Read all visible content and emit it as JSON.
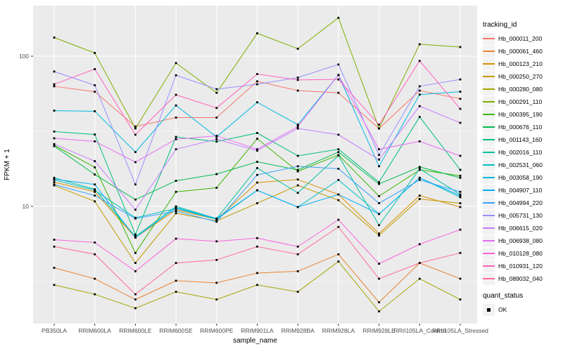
{
  "chart_data": {
    "type": "line",
    "title": "",
    "xlabel": "sample_name",
    "ylabel": "FPKM + 1",
    "y_scale": "log10",
    "y_ticks": [
      10,
      100
    ],
    "y_minor_gridlines": [
      3.1623,
      31.623
    ],
    "ylim": [
      1.7,
      220
    ],
    "grid": true,
    "panel_color": "#ebebeb",
    "gridline_color": "#ffffff",
    "tick_label_color": "#4d4d4d",
    "point_shape": "square",
    "point_color": "#000000",
    "legend_position": "right",
    "categories": [
      "PB350LA",
      "RRIM600LA",
      "RRIM600LE",
      "RRIM600SE",
      "RRIM600PE",
      "RRIM901LA",
      "RRIM928BA",
      "RRIM928LA",
      "RRIM928LE",
      "RRII105LA_Control",
      "RRII105LA_Stressed"
    ],
    "series": [
      {
        "name": "Hb_000011_200",
        "color": "#F8766D",
        "values": [
          63,
          58,
          34,
          39,
          39,
          68,
          59,
          57,
          33,
          59,
          52
        ]
      },
      {
        "name": "Hb_000061_460",
        "color": "#EA8331",
        "values": [
          3.9,
          3.3,
          2.4,
          3.2,
          3.1,
          3.6,
          3.7,
          4.8,
          2.3,
          4.2,
          3.3
        ]
      },
      {
        "name": "Hb_000123_210",
        "color": "#D89000",
        "values": [
          14.5,
          12.5,
          6.2,
          9.5,
          8.2,
          14.4,
          15.1,
          12,
          6.6,
          11.8,
          9.9
        ]
      },
      {
        "name": "Hb_000250_270",
        "color": "#C09B00",
        "values": [
          13.8,
          10.8,
          4.2,
          9,
          8,
          10.5,
          13.8,
          11,
          6.4,
          11.2,
          10.5
        ]
      },
      {
        "name": "Hb_000280_080",
        "color": "#A3A500",
        "values": [
          3,
          2.6,
          2.1,
          2.7,
          2.4,
          3,
          2.7,
          4.3,
          2,
          3.3,
          2.4
        ]
      },
      {
        "name": "Hb_000291_110",
        "color": "#7CAE00",
        "values": [
          133,
          105,
          33,
          90,
          57,
          142,
          112,
          180,
          33,
          120,
          115
        ]
      },
      {
        "name": "Hb_000395_190",
        "color": "#39B600",
        "values": [
          25.5,
          18.2,
          4.9,
          12.5,
          13.3,
          28.2,
          17.1,
          22,
          11.7,
          17.5,
          16
        ]
      },
      {
        "name": "Hb_000676_110",
        "color": "#00BB4E",
        "values": [
          25.2,
          16.3,
          11.1,
          14.8,
          16.4,
          19.8,
          17.5,
          23,
          14.1,
          18.3,
          15.5
        ]
      },
      {
        "name": "Hb_001143_160",
        "color": "#00BF7D",
        "values": [
          31.5,
          30.1,
          6.5,
          29,
          27,
          30.8,
          21.7,
          24,
          14.5,
          39.4,
          17.5
        ]
      },
      {
        "name": "Hb_002016_110",
        "color": "#00C1A3",
        "values": [
          15.5,
          13,
          6.3,
          10,
          8.3,
          18,
          12.3,
          21.8,
          7.5,
          17.8,
          12
        ]
      },
      {
        "name": "Hb_002531_060",
        "color": "#00BFC4",
        "values": [
          15,
          12.8,
          8.4,
          9.7,
          8.2,
          12.8,
          9.9,
          15,
          8.9,
          15.5,
          11.5
        ]
      },
      {
        "name": "Hb_003058_190",
        "color": "#00BAE0",
        "values": [
          43.4,
          43,
          23,
          47,
          29,
          49.3,
          35,
          75,
          18.5,
          55.5,
          58
        ]
      },
      {
        "name": "Hb_004907_110",
        "color": "#00B0F6",
        "values": [
          15.2,
          14,
          6.2,
          9.8,
          8.3,
          12.8,
          9.9,
          12,
          8.9,
          15.5,
          11.8
        ]
      },
      {
        "name": "Hb_004994_220",
        "color": "#35A2FF",
        "values": [
          14,
          11.8,
          8.3,
          9.3,
          7.9,
          16.2,
          18.5,
          17.8,
          10.5,
          15,
          12.5
        ]
      },
      {
        "name": "Hb_005731_130",
        "color": "#9590FF",
        "values": [
          79,
          64,
          14,
          74.6,
          60.3,
          65,
          72,
          88,
          22,
          63,
          70
        ]
      },
      {
        "name": "Hb_006615_020",
        "color": "#C77CFF",
        "values": [
          26,
          20,
          9.5,
          24,
          28,
          23.5,
          33,
          30,
          20.5,
          46.5,
          36
        ]
      },
      {
        "name": "Hb_006938_080",
        "color": "#E76BF3",
        "values": [
          28.4,
          27.1,
          19.7,
          28,
          29.5,
          24,
          34,
          74.9,
          24,
          27.1,
          21.7
        ]
      },
      {
        "name": "Hb_010128_080",
        "color": "#FA62DB",
        "values": [
          6,
          5.75,
          3.7,
          6.1,
          5.85,
          6.15,
          5.4,
          8.15,
          4.15,
          5.6,
          7
        ]
      },
      {
        "name": "Hb_010931_120",
        "color": "#FF62BC",
        "values": [
          65,
          82,
          30,
          55.3,
          45.2,
          76,
          69.5,
          70,
          35,
          93,
          44.6
        ]
      },
      {
        "name": "Hb_089032_040",
        "color": "#FF6A98",
        "values": [
          5.4,
          4.8,
          2.6,
          4.2,
          4.4,
          5.4,
          4.8,
          7.3,
          3.3,
          4.2,
          4.9
        ]
      }
    ],
    "color_legend": {
      "title": "tracking_id"
    },
    "quant_legend": {
      "title": "quant_status",
      "items": [
        {
          "label": "OK"
        }
      ]
    }
  }
}
